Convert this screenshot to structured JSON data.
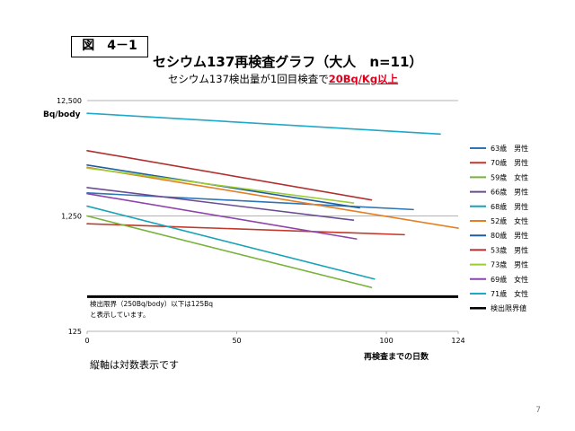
{
  "figure_label": "図　4－1",
  "page_number": "7",
  "footnote": "縦軸は対数表示です",
  "subtitle": {
    "prefix": "セシウム137検出量が1回目検査で",
    "highlight": "20Bq/Kg以上"
  },
  "chart_data": {
    "type": "line",
    "title": "セシウム137再検査グラフ（大人　n=11）",
    "xlabel": "再検査までの日数",
    "ylabel": "Bq/body",
    "xlim": [
      0,
      124
    ],
    "ylim": [
      125,
      12500
    ],
    "y_scale": "log",
    "xticks": [
      0,
      50,
      100,
      124
    ],
    "yticks": [
      125,
      1250,
      12500
    ],
    "ytick_labels": [
      "125",
      "1,250",
      "12,500"
    ],
    "grid": "horizontal",
    "legend_position": "right",
    "series": [
      {
        "name": "63歳　男性",
        "color": "#2e75b6",
        "points": [
          [
            0,
            1980
          ],
          [
            109,
            1420
          ]
        ]
      },
      {
        "name": "70歳　男性",
        "color": "#c0392b",
        "points": [
          [
            0,
            1070
          ],
          [
            106,
            860
          ]
        ]
      },
      {
        "name": "59歳　女性",
        "color": "#77b33a",
        "points": [
          [
            0,
            1250
          ],
          [
            95,
            300
          ]
        ]
      },
      {
        "name": "66歳　男性",
        "color": "#6a4c93",
        "points": [
          [
            0,
            2200
          ],
          [
            89,
            1150
          ]
        ]
      },
      {
        "name": "68歳　男性",
        "color": "#17a2b8",
        "points": [
          [
            0,
            1520
          ],
          [
            96,
            355
          ]
        ]
      },
      {
        "name": "52歳　女性",
        "color": "#e67e22",
        "points": [
          [
            0,
            3300
          ],
          [
            124,
            980
          ]
        ]
      },
      {
        "name": "80歳　男性",
        "color": "#1f5fa0",
        "points": [
          [
            0,
            3450
          ],
          [
            91,
            1470
          ]
        ]
      },
      {
        "name": "53歳　男性",
        "color": "#b03030",
        "points": [
          [
            0,
            4600
          ],
          [
            95,
            1720
          ]
        ]
      },
      {
        "name": "73歳　男性",
        "color": "#9acd32",
        "points": [
          [
            0,
            3250
          ],
          [
            89,
            1620
          ]
        ]
      },
      {
        "name": "69歳　女性",
        "color": "#8e44ad",
        "points": [
          [
            0,
            1950
          ],
          [
            90,
            790
          ]
        ]
      },
      {
        "name": "71歳　女性",
        "color": "#20a8c8",
        "points": [
          [
            0,
            9700
          ],
          [
            118,
            6400
          ]
        ]
      }
    ],
    "threshold": {
      "name": "検出限界値",
      "value": 250,
      "color": "#000000",
      "annotation_line1": "検出限界（250Bq/body）以下は125Bq",
      "annotation_line2": "と表示しています。"
    }
  }
}
